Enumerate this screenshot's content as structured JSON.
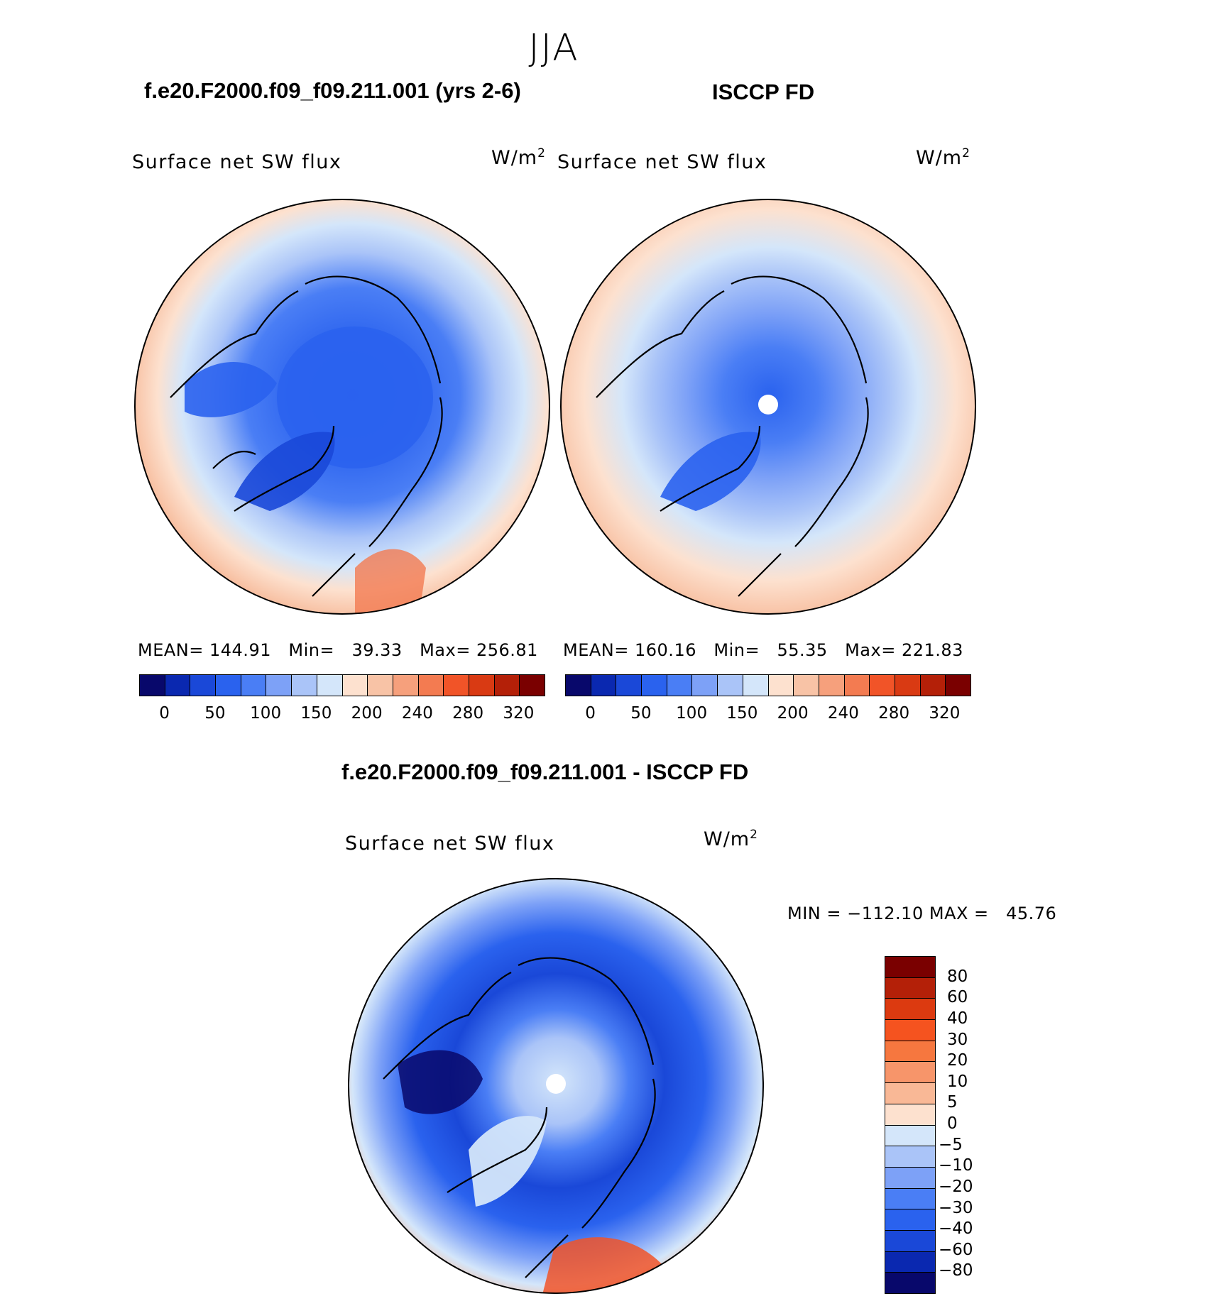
{
  "season": "JJA",
  "panels": [
    {
      "title": "f.e20.F2000.f09_f09.211.001 (yrs 2-6)",
      "variable": "Surface net SW flux",
      "units_base": "W/m",
      "units_exp": "2",
      "stats": {
        "mean_label": "MEAN=",
        "mean": "144.91",
        "min_label": "Min=",
        "min": "39.33",
        "max_label": "Max=",
        "max": "256.81"
      }
    },
    {
      "title": "ISCCP FD",
      "variable": "Surface net SW flux",
      "units_base": "W/m",
      "units_exp": "2",
      "stats": {
        "mean_label": "MEAN=",
        "mean": "160.16",
        "min_label": "Min=",
        "min": "55.35",
        "max_label": "Max=",
        "max": "221.83"
      }
    }
  ],
  "abs_colorbar": {
    "colors": [
      "#08086b",
      "#0a28b0",
      "#1a48d8",
      "#2a62ee",
      "#4a7ef5",
      "#7da1f7",
      "#aac4f8",
      "#d4e6fa",
      "#fde1cf",
      "#f8c3a6",
      "#f6a07c",
      "#f37b51",
      "#f15428",
      "#d93a13",
      "#b42008",
      "#7a0000"
    ],
    "tick_labels": [
      "0",
      "50",
      "100",
      "150",
      "200",
      "240",
      "280",
      "320"
    ]
  },
  "diff_panel": {
    "title": "f.e20.F2000.f09_f09.211.001 - ISCCP FD",
    "variable": "Surface net SW flux",
    "units_base": "W/m",
    "units_exp": "2",
    "min_label": "MIN =",
    "min": "−112.10",
    "max_label": "MAX =",
    "max": "45.76"
  },
  "diff_colorbar": {
    "colors": [
      "#7a0000",
      "#b42008",
      "#dc3a10",
      "#f5531f",
      "#f6773f",
      "#f7956a",
      "#f9b896",
      "#fde1cf",
      "#d4e6fa",
      "#aac4f8",
      "#7da1f7",
      "#4a7ef5",
      "#2a62ee",
      "#1a48d8",
      "#0a28b0",
      "#08086b"
    ],
    "tick_labels": [
      "80",
      "60",
      "40",
      "30",
      "20",
      "10",
      "5",
      "0",
      "−5",
      "−10",
      "−20",
      "−30",
      "−40",
      "−60",
      "−80"
    ]
  }
}
